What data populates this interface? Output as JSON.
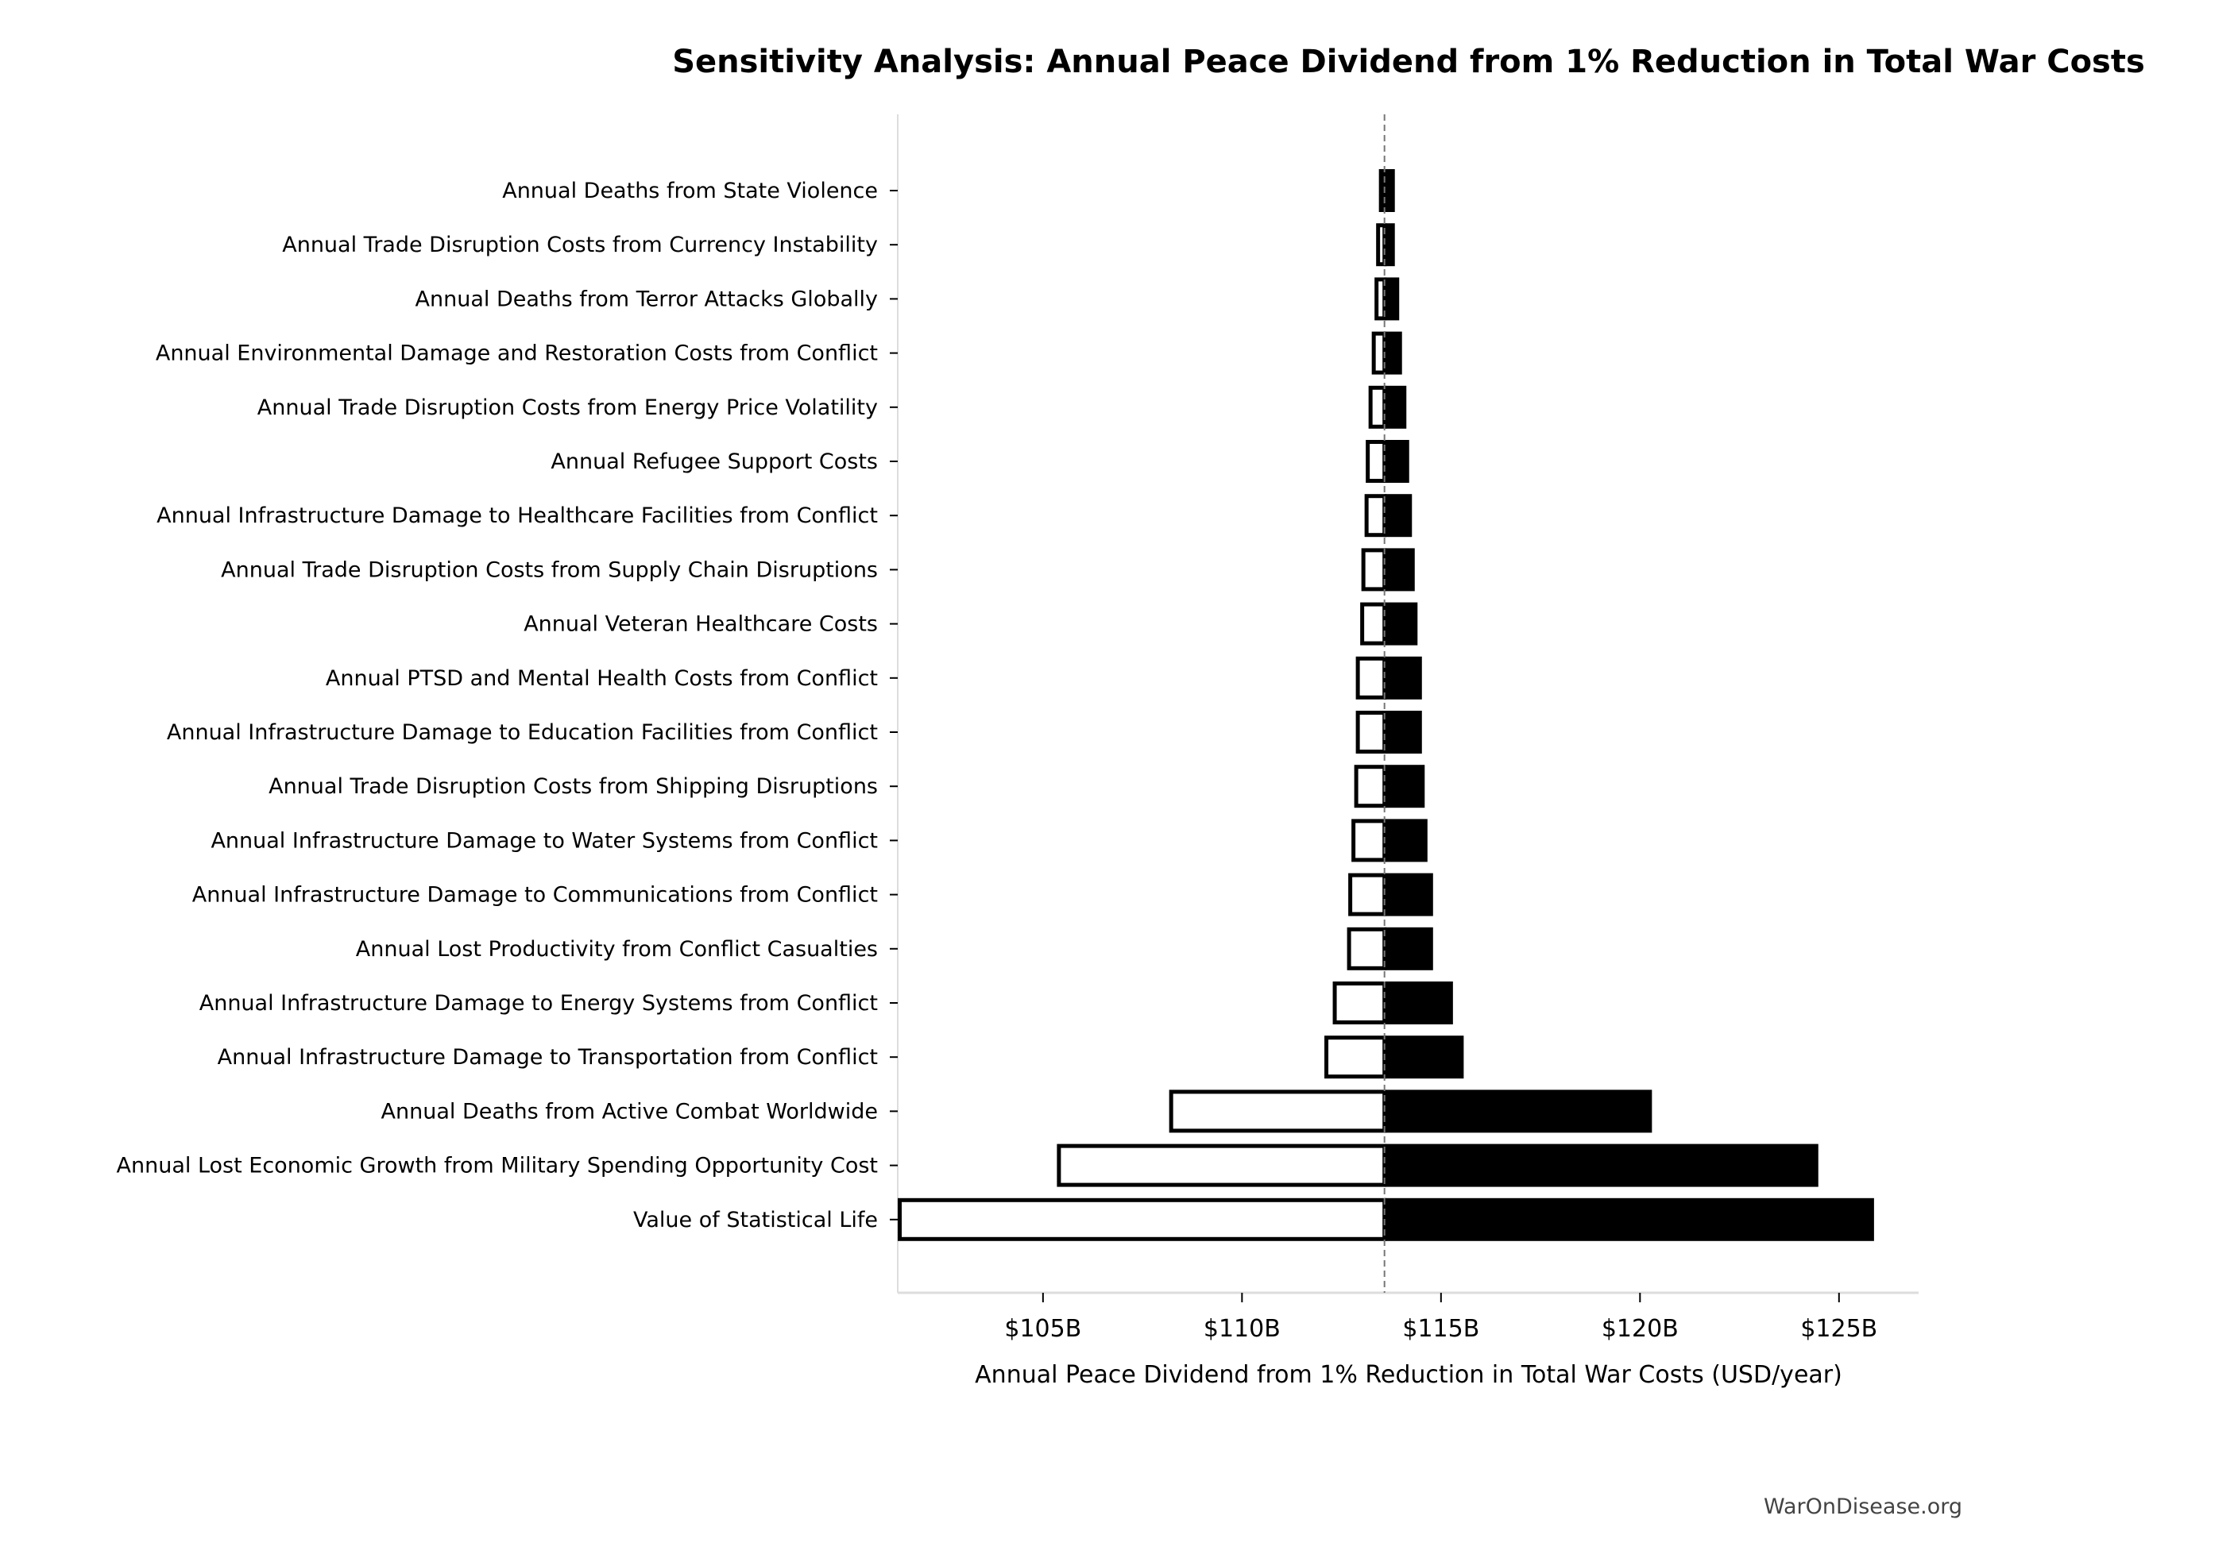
{
  "chart_data": {
    "type": "bar",
    "orientation": "horizontal",
    "subtype": "tornado",
    "title": "Sensitivity Analysis: Annual Peace Dividend from 1% Reduction in Total War Costs",
    "xlabel": "Annual Peace Dividend from 1% Reduction in Total War Costs (USD/year)",
    "ylabel": "",
    "baseline": 113.58,
    "xlim": [
      101.35,
      127.0
    ],
    "x_unit": "billion USD",
    "xticks": [
      105,
      110,
      115,
      120,
      125
    ],
    "xtick_labels": [
      "$105B",
      "$110B",
      "$115B",
      "$120B",
      "$125B"
    ],
    "grid": false,
    "colors": {
      "low": "#ffffff",
      "high": "#000000",
      "edge": "#000000",
      "baseline": "#777777"
    },
    "categories": [
      "Annual Deaths from State Violence",
      "Annual Trade Disruption Costs from Currency Instability",
      "Annual Deaths from Terror Attacks Globally",
      "Annual Environmental Damage and Restoration Costs from Conflict",
      "Annual Trade Disruption Costs from Energy Price Volatility",
      "Annual Refugee Support Costs",
      "Annual Infrastructure Damage to Healthcare Facilities from Conflict",
      "Annual Trade Disruption Costs from Supply Chain Disruptions",
      "Annual Veteran Healthcare Costs",
      "Annual PTSD and Mental Health Costs from Conflict",
      "Annual Infrastructure Damage to Education Facilities from Conflict",
      "Annual Trade Disruption Costs from Shipping Disruptions",
      "Annual Infrastructure Damage to Water Systems from Conflict",
      "Annual Infrastructure Damage to Communications from Conflict",
      "Annual Lost Productivity from Conflict Casualties",
      "Annual Infrastructure Damage to Energy Systems from Conflict",
      "Annual Infrastructure Damage to Transportation from Conflict",
      "Annual Deaths from Active Combat Worldwide",
      "Annual Lost Economic Growth from Military Spending Opportunity Cost",
      "Value of Statistical Life"
    ],
    "series": [
      {
        "values": [
          113.44,
          113.37,
          113.33,
          113.26,
          113.18,
          113.11,
          113.08,
          113.0,
          112.97,
          112.86,
          112.86,
          112.82,
          112.75,
          112.67,
          112.64,
          112.28,
          112.07,
          108.17,
          105.35,
          101.35
        ]
      },
      {
        "values": [
          113.84,
          113.84,
          113.95,
          114.02,
          114.13,
          114.2,
          114.27,
          114.34,
          114.41,
          114.52,
          114.52,
          114.59,
          114.66,
          114.8,
          114.8,
          115.3,
          115.57,
          120.3,
          124.48,
          125.88
        ]
      }
    ]
  },
  "watermark": "WarOnDisease.org"
}
